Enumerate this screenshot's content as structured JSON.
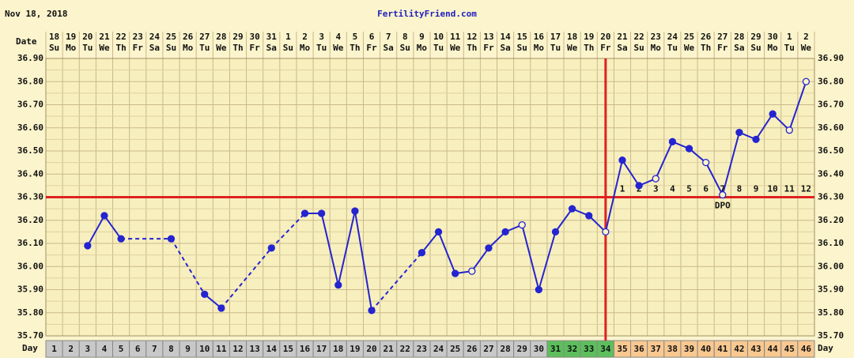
{
  "chart_data": {
    "type": "line",
    "date_label": "Nov 18, 2018",
    "title": "FertilityFriend.com",
    "date_row_label": "Date",
    "day_row_label": "Day",
    "dpo_label": "DPO",
    "categories": [
      1,
      2,
      3,
      4,
      5,
      6,
      7,
      8,
      9,
      10,
      11,
      12,
      13,
      14,
      15,
      16,
      17,
      18,
      19,
      20,
      21,
      22,
      23,
      24,
      25,
      26,
      27,
      28,
      29,
      30,
      31,
      32,
      33,
      34,
      35,
      36,
      37,
      38,
      39,
      40,
      41,
      42,
      43,
      44,
      45,
      46
    ],
    "dates": [
      18,
      19,
      20,
      21,
      22,
      23,
      24,
      25,
      26,
      27,
      28,
      29,
      30,
      31,
      1,
      2,
      3,
      4,
      5,
      6,
      7,
      8,
      9,
      10,
      11,
      12,
      13,
      14,
      15,
      16,
      17,
      18,
      19,
      20,
      21,
      22,
      23,
      24,
      25,
      26,
      27,
      28,
      29,
      30,
      1,
      2
    ],
    "weekdays": [
      "Su",
      "Mo",
      "Tu",
      "We",
      "Th",
      "Fr",
      "Sa",
      "Su",
      "Mo",
      "Tu",
      "We",
      "Th",
      "Fr",
      "Sa",
      "Su",
      "Mo",
      "Tu",
      "We",
      "Th",
      "Fr",
      "Sa",
      "Su",
      "Mo",
      "Tu",
      "We",
      "Th",
      "Fr",
      "Sa",
      "Su",
      "Mo",
      "Tu",
      "We",
      "Th",
      "Fr",
      "Sa",
      "Su",
      "Mo",
      "Tu",
      "We",
      "Th",
      "Fr",
      "Sa",
      "Su",
      "Mo",
      "Tu",
      "We"
    ],
    "day_colors": [
      "#c8c8c8",
      "#c8c8c8",
      "#c8c8c8",
      "#c8c8c8",
      "#c8c8c8",
      "#c8c8c8",
      "#c8c8c8",
      "#c8c8c8",
      "#c8c8c8",
      "#c8c8c8",
      "#c8c8c8",
      "#c8c8c8",
      "#c8c8c8",
      "#c8c8c8",
      "#c8c8c8",
      "#c8c8c8",
      "#c8c8c8",
      "#c8c8c8",
      "#c8c8c8",
      "#c8c8c8",
      "#c8c8c8",
      "#c8c8c8",
      "#c8c8c8",
      "#c8c8c8",
      "#c8c8c8",
      "#c8c8c8",
      "#c8c8c8",
      "#c8c8c8",
      "#c8c8c8",
      "#c8c8c8",
      "#5cbf5c",
      "#5cbf5c",
      "#5cbf5c",
      "#5cbf5c",
      "#f8c890",
      "#f8c890",
      "#f8c890",
      "#f8c890",
      "#f8c890",
      "#f8c890",
      "#f8c890",
      "#f8c890",
      "#f8c890",
      "#f8c890",
      "#f8c890",
      "#f8c890"
    ],
    "series": [
      {
        "color": "#2424d0",
        "values": [
          null,
          null,
          36.09,
          36.22,
          36.12,
          null,
          null,
          36.12,
          null,
          35.88,
          35.82,
          null,
          null,
          36.08,
          null,
          36.23,
          36.23,
          35.92,
          36.24,
          35.81,
          null,
          null,
          36.06,
          36.15,
          35.97,
          35.98,
          36.08,
          36.15,
          36.18,
          35.9,
          36.15,
          36.25,
          36.22,
          36.15,
          36.46,
          36.35,
          36.38,
          36.54,
          36.51,
          36.45,
          36.31,
          36.58,
          36.55,
          36.66,
          36.59,
          36.8
        ],
        "open_markers": [
          false,
          false,
          false,
          false,
          false,
          false,
          false,
          false,
          false,
          false,
          false,
          false,
          false,
          false,
          false,
          false,
          false,
          false,
          false,
          false,
          false,
          false,
          false,
          false,
          false,
          true,
          false,
          false,
          true,
          false,
          false,
          false,
          false,
          true,
          false,
          false,
          true,
          false,
          false,
          true,
          true,
          false,
          false,
          false,
          true,
          true
        ]
      }
    ],
    "coverline": 36.3,
    "ovulation_day": 34,
    "line_color": "#dd2222",
    "dpo_numbers": [
      1,
      2,
      3,
      4,
      5,
      6,
      7,
      8,
      9,
      10,
      11,
      12
    ],
    "ylim": [
      35.7,
      36.9
    ],
    "yticks": [
      {
        "value": 35.7,
        "label": "35.70"
      },
      {
        "value": 35.8,
        "label": "35.80"
      },
      {
        "value": 35.9,
        "label": "35.90"
      },
      {
        "value": 36.0,
        "label": "36.00"
      },
      {
        "value": 36.1,
        "label": "36.10"
      },
      {
        "value": 36.2,
        "label": "36.20"
      },
      {
        "value": 36.3,
        "label": "36.30"
      },
      {
        "value": 36.4,
        "label": "36.40"
      },
      {
        "value": 36.5,
        "label": "36.50"
      },
      {
        "value": 36.6,
        "label": "36.60"
      },
      {
        "value": 36.7,
        "label": "36.70"
      },
      {
        "value": 36.8,
        "label": "36.80"
      },
      {
        "value": 36.9,
        "label": "36.90"
      }
    ],
    "grid": true
  }
}
